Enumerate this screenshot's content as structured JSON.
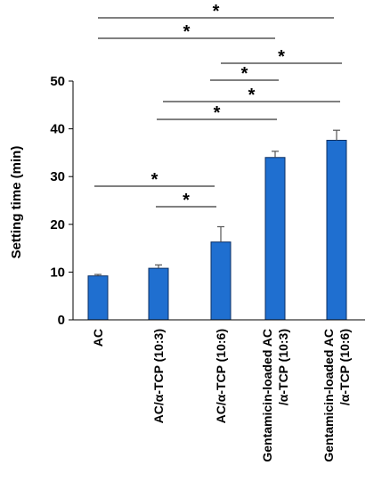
{
  "chart_data": {
    "type": "bar",
    "ylabel": "Setting time (min)",
    "ylim": [
      0,
      50
    ],
    "yticks": [
      0,
      10,
      20,
      30,
      40,
      50
    ],
    "categories": [
      [
        "AC"
      ],
      [
        "AC/α-TCP (10:3)"
      ],
      [
        "AC/α-TCP (10:6)"
      ],
      [
        "Gentamicin-loaded AC",
        "/α-TCP (10:3)"
      ],
      [
        "Gentamicin-loaded AC",
        "/α-TCP (10:6)"
      ]
    ],
    "values": [
      9.2,
      10.8,
      16.3,
      34.0,
      37.6
    ],
    "errors": [
      0.3,
      0.7,
      3.2,
      1.3,
      2.1
    ],
    "bar_color": "#1f6fd0",
    "bar_edge": "#0b2f63",
    "significance": [
      {
        "from": 0,
        "to": 4,
        "label": "*"
      },
      {
        "from": 0,
        "to": 3,
        "label": "*"
      },
      {
        "from": 2,
        "to": 4,
        "label": "*"
      },
      {
        "from": 2,
        "to": 3,
        "label": "*"
      },
      {
        "from": 1,
        "to": 4,
        "label": "*"
      },
      {
        "from": 1,
        "to": 3,
        "label": "*"
      },
      {
        "from": 0,
        "to": 2,
        "label": "*"
      },
      {
        "from": 1,
        "to": 2,
        "label": "*"
      }
    ],
    "grid": false,
    "legend": "none"
  }
}
